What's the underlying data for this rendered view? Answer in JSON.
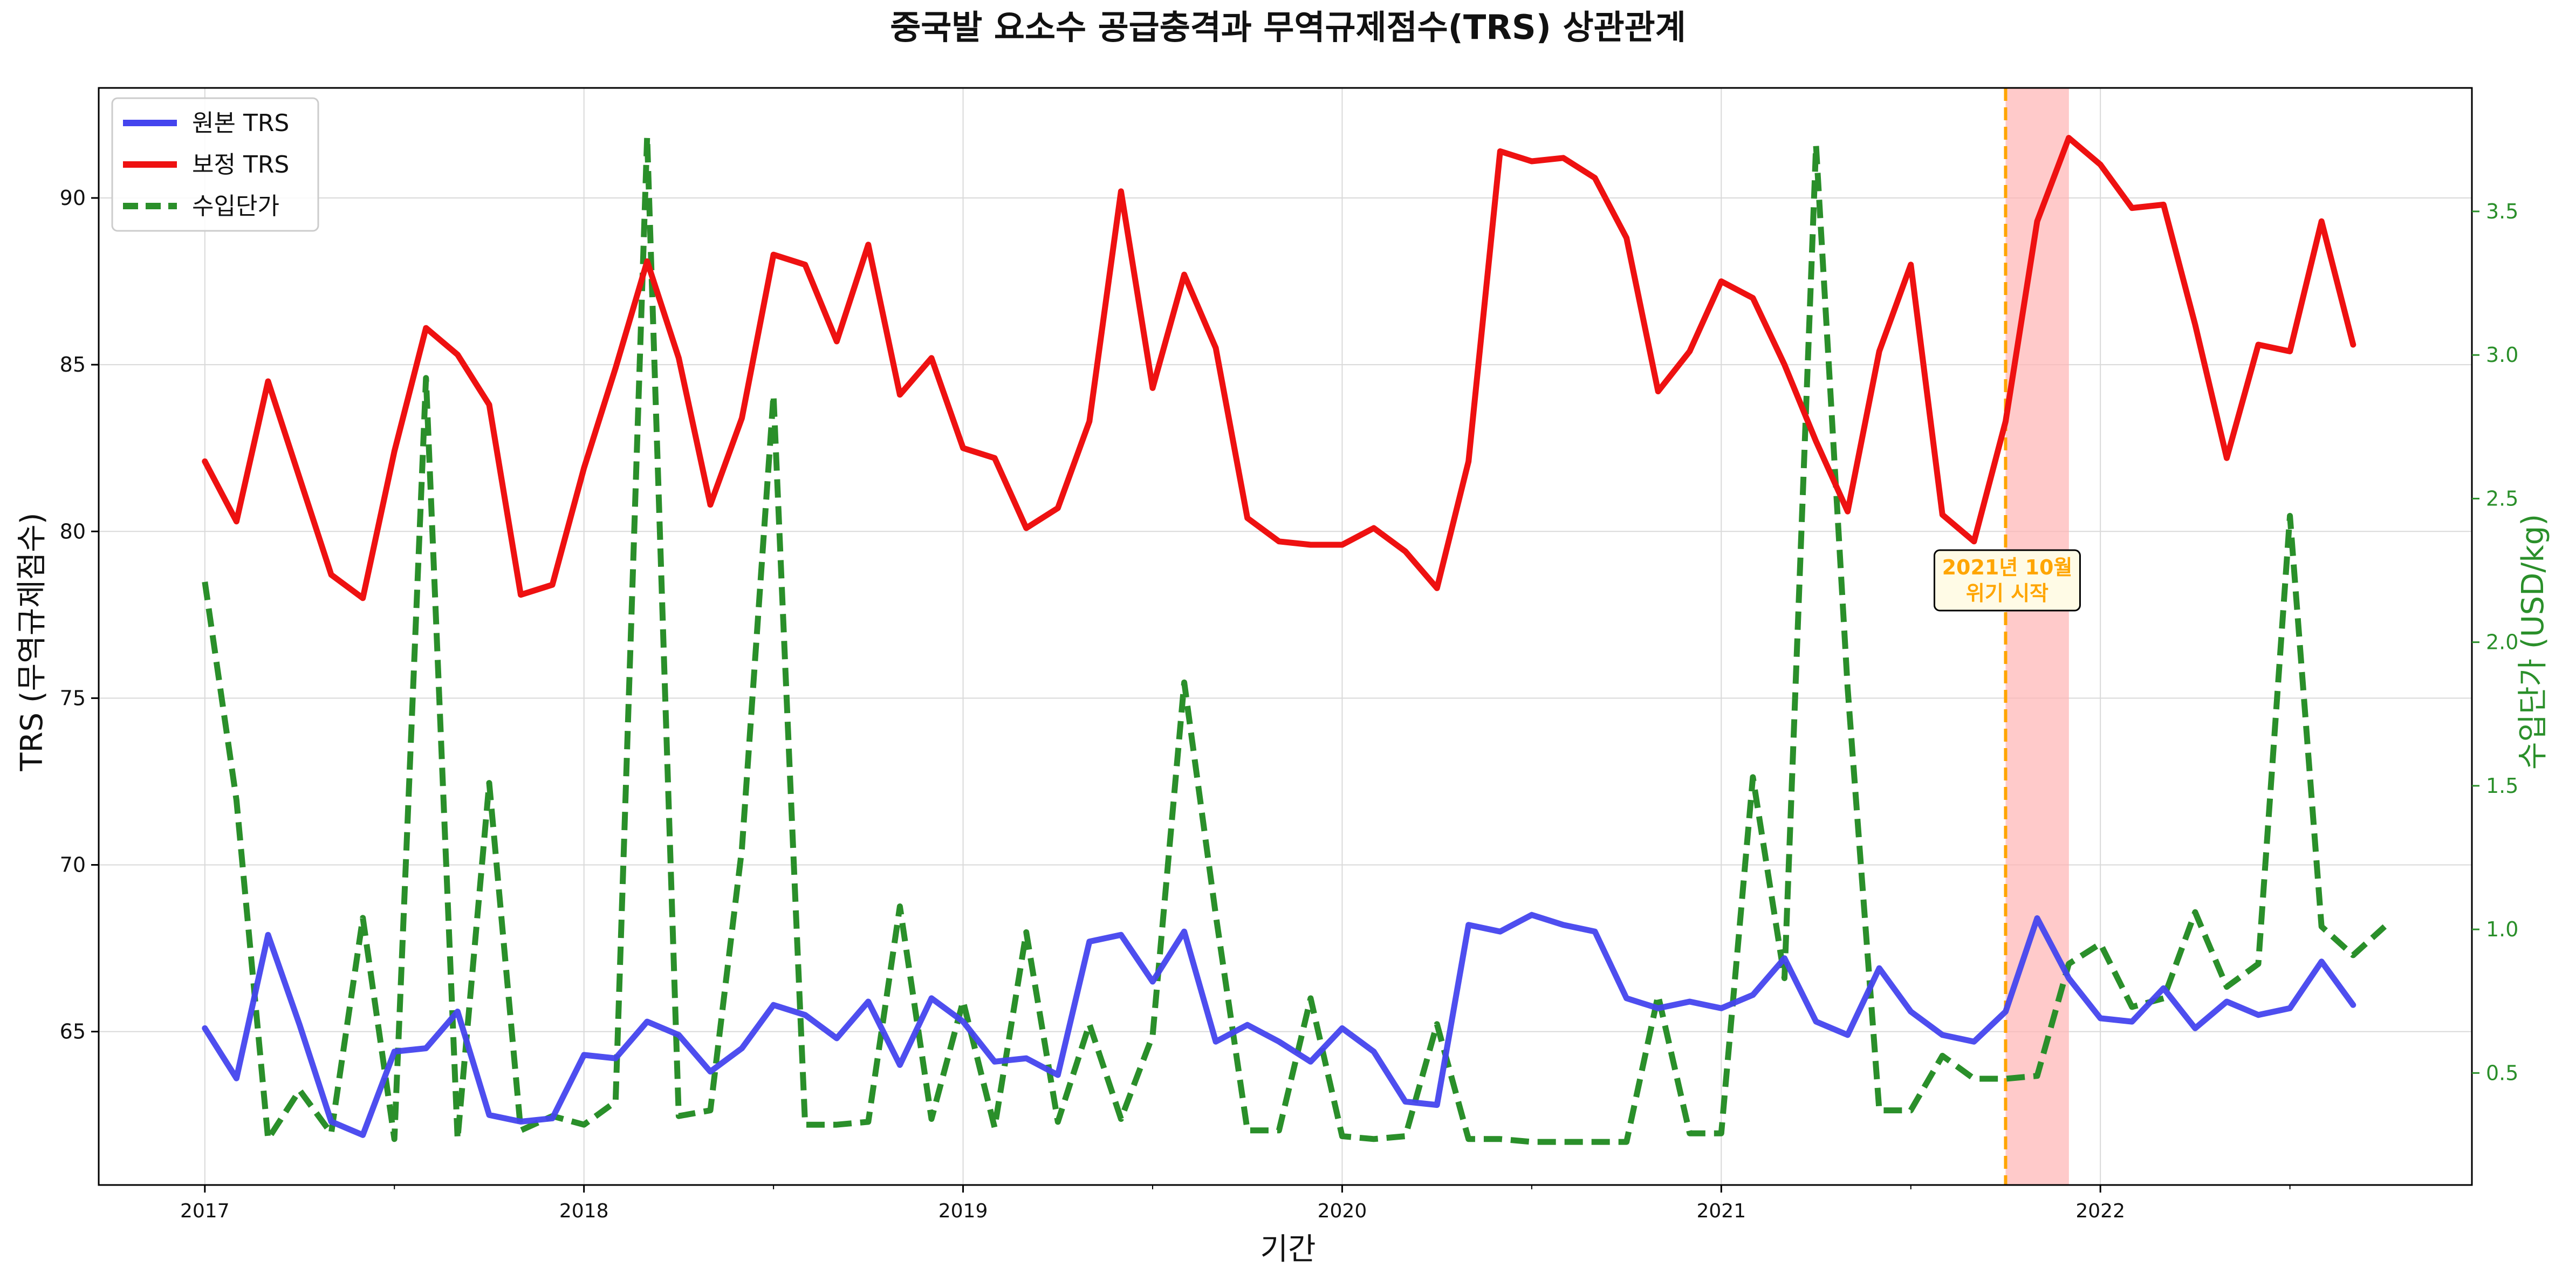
{
  "chart_data": {
    "type": "line",
    "title": "중국발 요소수 공급충격과 무역규제점수(TRS) 상관관계",
    "xlabel": "기간",
    "ylabel_left": "TRS (무역규제점수)",
    "ylabel_right": "수입단가 (USD/kg)",
    "x_ticks": [
      "2017",
      "2018",
      "2019",
      "2020",
      "2021",
      "2022"
    ],
    "x_range": [
      2016.72,
      2022.98
    ],
    "y_left_range": [
      60.4,
      93.3
    ],
    "y_left_ticks": [
      65,
      70,
      75,
      80,
      85,
      90
    ],
    "y_right_range": [
      0.11,
      3.93
    ],
    "y_right_ticks": [
      0.5,
      1.0,
      1.5,
      2.0,
      2.5,
      3.0,
      3.5
    ],
    "grid": true,
    "legend_position": "top-left",
    "annotation": {
      "line1": "2021년 10월",
      "line2": "위기 시작",
      "marker_x": 2021.75,
      "shade_range": [
        2021.75,
        2021.917
      ]
    },
    "colors": {
      "raw": "#4444ee",
      "adjusted": "#ee1111",
      "price": "#2a8f2a",
      "crisis": "#ffa500",
      "shade": "#ffb3b3"
    },
    "series": [
      {
        "name": "원본 TRS",
        "axis": "left",
        "values": [
          65.1,
          63.6,
          67.9,
          65.2,
          62.3,
          61.9,
          64.4,
          64.5,
          65.6,
          62.5,
          62.3,
          62.4,
          64.3,
          64.2,
          65.3,
          64.9,
          63.8,
          64.5,
          65.8,
          65.5,
          64.8,
          65.9,
          64.0,
          66.0,
          65.3,
          64.1,
          64.2,
          63.7,
          67.7,
          67.9,
          66.5,
          68.0,
          64.7,
          65.2,
          64.7,
          64.1,
          65.1,
          64.4,
          62.9,
          62.8,
          68.2,
          68.0,
          68.5,
          68.2,
          68.0,
          66.0,
          65.7,
          65.9,
          65.7,
          66.1,
          67.2,
          65.3,
          64.9,
          66.9,
          65.6,
          64.9,
          64.7,
          65.6,
          68.4,
          66.6,
          65.4,
          65.3,
          66.3,
          65.1,
          65.9,
          65.5,
          65.7,
          67.1,
          65.8
        ]
      },
      {
        "name": "보정 TRS",
        "axis": "left",
        "values": [
          82.1,
          80.3,
          84.5,
          81.6,
          78.7,
          78.0,
          82.4,
          86.1,
          85.3,
          83.8,
          78.1,
          78.4,
          81.9,
          84.9,
          88.1,
          85.2,
          80.8,
          83.4,
          88.3,
          88.0,
          85.7,
          88.6,
          84.1,
          85.2,
          82.5,
          82.2,
          80.1,
          80.7,
          83.3,
          90.2,
          84.3,
          87.7,
          85.5,
          80.4,
          79.7,
          79.6,
          79.6,
          80.1,
          79.4,
          78.3,
          82.1,
          91.4,
          91.1,
          91.2,
          90.6,
          88.8,
          84.2,
          85.4,
          87.5,
          87.0,
          85.0,
          82.7,
          80.6,
          85.4,
          88.0,
          80.5,
          79.7,
          83.3,
          89.3,
          91.8,
          91.0,
          89.7,
          89.8,
          86.2,
          82.2,
          85.6,
          85.4,
          89.3,
          85.6
        ]
      },
      {
        "name": "수입단가",
        "axis": "right",
        "values": [
          2.21,
          1.45,
          0.27,
          0.44,
          0.29,
          1.04,
          0.27,
          2.92,
          0.27,
          1.51,
          0.3,
          0.35,
          0.32,
          0.4,
          3.76,
          0.35,
          0.37,
          1.28,
          2.86,
          0.32,
          0.32,
          0.33,
          1.08,
          0.34,
          0.75,
          0.31,
          0.99,
          0.33,
          0.67,
          0.34,
          0.63,
          1.86,
          1.05,
          0.3,
          0.3,
          0.76,
          0.28,
          0.27,
          0.28,
          0.67,
          0.27,
          0.27,
          0.26,
          0.26,
          0.26,
          0.26,
          0.77,
          0.29,
          0.29,
          1.53,
          0.83,
          3.73,
          1.84,
          0.37,
          0.37,
          0.56,
          0.48,
          0.48,
          0.49,
          0.88,
          0.95,
          0.73,
          0.76,
          1.06,
          0.8,
          0.88,
          2.44,
          1.01,
          0.91,
          1.01
        ]
      }
    ]
  }
}
